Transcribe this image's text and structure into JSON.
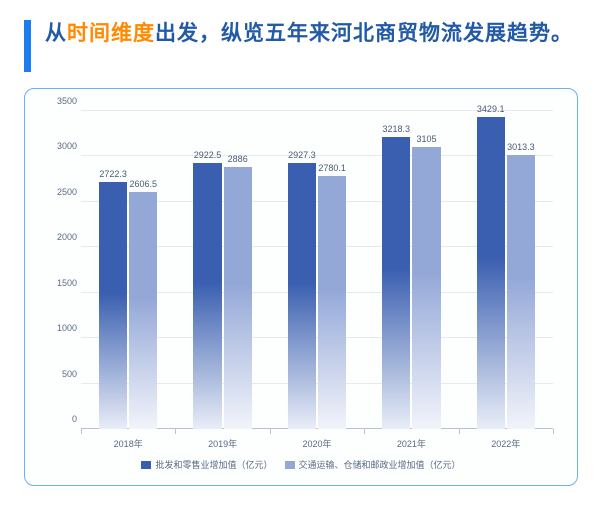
{
  "title": {
    "prefix": "从",
    "highlight": "时间维度",
    "rest": "出发，纵览五年来河北商贸物流发展趋势。",
    "highlight_color": "#ff8a00",
    "normal_color": "#235aa6",
    "bar_color": "#1d7df0",
    "fontsize": 21
  },
  "chart": {
    "type": "bar",
    "card_border_color": "#6bb0f5",
    "background_color": "#fdfefe",
    "grid_color": "#e6e9ee",
    "axis_color": "#b9c2cf",
    "label_color": "#5a6b82",
    "label_fontsize": 9,
    "ylim": [
      0,
      3500
    ],
    "ytick_step": 500,
    "yticks": [
      0,
      500,
      1000,
      1500,
      2000,
      2500,
      3000,
      3500
    ],
    "categories": [
      "2018年",
      "2019年",
      "2020年",
      "2021年",
      "2022年"
    ],
    "series": [
      {
        "name": "批发和零售业增加值（亿元）",
        "values": [
          2722.3,
          2922.5,
          2927.3,
          3218.3,
          3429.1
        ],
        "color_top": "#3a5fb0",
        "color_bottom": "#e9edf7"
      },
      {
        "name": "交通运输、仓储和邮政业增加值（亿元）",
        "values": [
          2606.5,
          2886,
          2780.1,
          3105,
          3013.3
        ],
        "color_top": "#94a8d8",
        "color_bottom": "#f2f4fa"
      }
    ],
    "bar_width_pct": 6.0,
    "bar_gap_pct": 0.4,
    "group_width_pct": 20
  }
}
